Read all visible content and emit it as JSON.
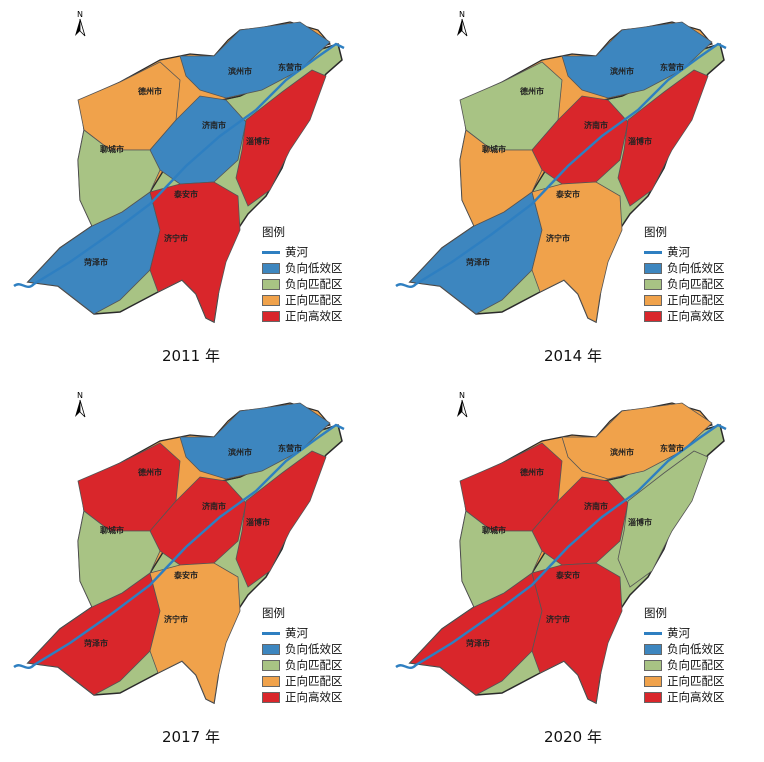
{
  "colors": {
    "river": "#2e7fc1",
    "negative_low": "#3d86bf",
    "negative_match": "#a8c384",
    "positive_match": "#f0a24b",
    "positive_high": "#d9262b",
    "border": "#2a2a2a"
  },
  "north_label": "N",
  "legend": {
    "title": "图例",
    "river": "黄河",
    "classes": [
      "负向低效区",
      "负向匹配区",
      "正向匹配区",
      "正向高效区"
    ]
  },
  "cities": {
    "binzhou": "滨州市",
    "dongying": "东营市",
    "dezhou": "德州市",
    "jinan": "济南市",
    "zibo": "淄博市",
    "liaocheng": "聊城市",
    "taian": "泰安市",
    "jining": "济宁市",
    "heze": "菏泽市"
  },
  "panels": [
    {
      "year_label": "2011 年"
    },
    {
      "year_label": "2014 年"
    },
    {
      "year_label": "2017 年"
    },
    {
      "year_label": "2020 年"
    }
  ]
}
